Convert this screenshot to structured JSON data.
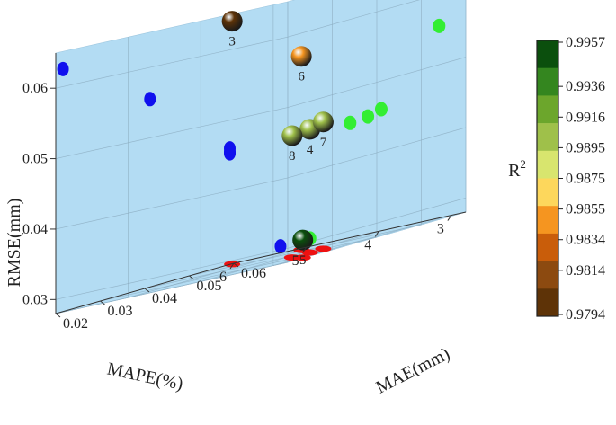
{
  "chart_data": {
    "type": "scatter",
    "projection": "3d",
    "title": "",
    "axes": {
      "x": {
        "label": "MAPE(%)",
        "range": [
          2.8,
          6.0
        ],
        "ticks": [
          3,
          4,
          5,
          6
        ],
        "tick_labels": [
          "3",
          "4",
          "5",
          "6"
        ]
      },
      "y": {
        "label": "MAE(mm)",
        "range": [
          0.02,
          0.06
        ],
        "ticks": [
          0.02,
          0.03,
          0.04,
          0.05,
          0.06
        ],
        "tick_labels": [
          "0.02",
          "0.03",
          "0.04",
          "0.05",
          "0.06"
        ]
      },
      "z": {
        "label": "RMSE(mm)",
        "range": [
          0.028,
          0.065
        ],
        "ticks": [
          0.03,
          0.04,
          0.05,
          0.06
        ],
        "tick_labels": [
          "0.03",
          "0.04",
          "0.05",
          "0.06"
        ]
      }
    },
    "background_color": "#b3dcf3",
    "grid": true,
    "models": [
      {
        "label": "3",
        "mape": 5.9,
        "mae": 0.058,
        "rmse": 0.0625,
        "r2": 0.9794
      },
      {
        "label": "4",
        "mape": 3.6,
        "mae": 0.038,
        "rmse": 0.0455,
        "r2": 0.9905
      },
      {
        "label": "5",
        "mape": 2.9,
        "mae": 0.025,
        "rmse": 0.0305,
        "r2": 0.9957
      },
      {
        "label": "6",
        "mape": 4.7,
        "mae": 0.054,
        "rmse": 0.0555,
        "r2": 0.9845
      },
      {
        "label": "7",
        "mape": 3.6,
        "mae": 0.041,
        "rmse": 0.046,
        "r2": 0.99
      },
      {
        "label": "8",
        "mape": 3.6,
        "mae": 0.034,
        "rmse": 0.0453,
        "r2": 0.9905
      }
    ],
    "projections": {
      "mape_rmse_plane": {
        "color": "#1010ee",
        "points": [
          [
            2.9,
            0.0305
          ],
          [
            3.6,
            0.0453
          ],
          [
            3.6,
            0.0455
          ],
          [
            3.6,
            0.046
          ],
          [
            4.7,
            0.0555
          ],
          [
            5.9,
            0.0625
          ]
        ]
      },
      "mae_rmse_plane": {
        "color": "#33ee33",
        "points": [
          [
            0.025,
            0.0305
          ],
          [
            0.034,
            0.0453
          ],
          [
            0.038,
            0.0455
          ],
          [
            0.041,
            0.046
          ],
          [
            0.054,
            0.0555
          ],
          [
            0.058,
            0.0625
          ]
        ]
      },
      "mape_mae_plane": {
        "color": "#ee1111",
        "points": [
          [
            2.9,
            0.025
          ],
          [
            3.6,
            0.034
          ],
          [
            3.6,
            0.038
          ],
          [
            3.6,
            0.041
          ],
          [
            4.7,
            0.054
          ],
          [
            5.9,
            0.058
          ]
        ]
      }
    },
    "colorbar": {
      "label": "R",
      "label_superscript": "2",
      "tick_labels": [
        "0.9957",
        "0.9936",
        "0.9916",
        "0.9895",
        "0.9875",
        "0.9855",
        "0.9834",
        "0.9814",
        "0.9794"
      ],
      "colors_top_to_bottom": [
        "#0b4f0d",
        "#34861f",
        "#6ca62c",
        "#9fc04a",
        "#d8e56e",
        "#fdd75c",
        "#f59520",
        "#c95d0a",
        "#8c4a10",
        "#5e3307"
      ]
    }
  }
}
